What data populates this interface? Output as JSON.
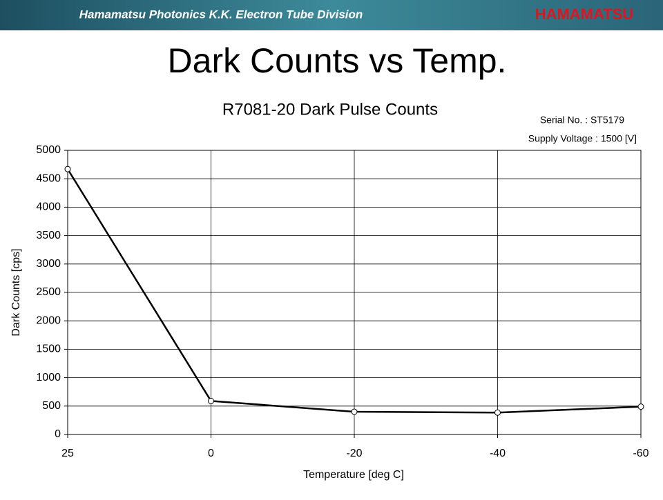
{
  "header": {
    "division": "Hamamatsu Photonics K.K.  Electron Tube Division",
    "logo": "HAMAMATSU"
  },
  "slide_title": "Dark Counts vs Temp.",
  "chart_data": {
    "type": "line",
    "title": "R7081-20  Dark Pulse Counts",
    "annotations": [
      "Serial No. : ST5179",
      "Supply Voltage : 1500 [V]"
    ],
    "x_label": "Temperature [deg C]",
    "y_label": "Dark Counts [cps]",
    "categories": [
      "25",
      "0",
      "-20",
      "-40",
      "-60"
    ],
    "series": [
      {
        "name": "Dark Counts",
        "color": "#000000",
        "values": [
          4670,
          590,
          400,
          385,
          490
        ]
      }
    ],
    "ylim": [
      0,
      5000
    ],
    "yticks": [
      0,
      500,
      1000,
      1500,
      2000,
      2500,
      3000,
      3500,
      4000,
      4500,
      5000
    ],
    "grid": true
  }
}
